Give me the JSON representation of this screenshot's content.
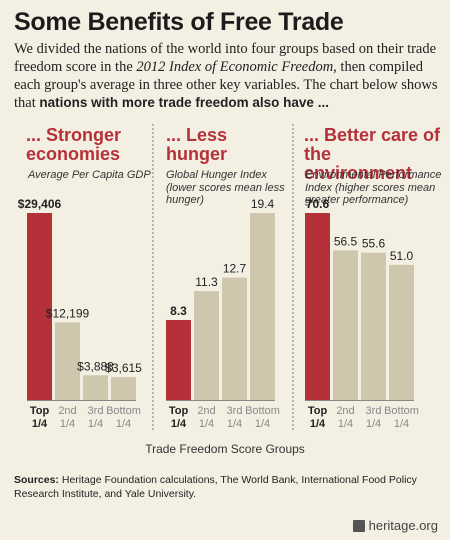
{
  "title": "Some Benefits of Free Trade",
  "intro": {
    "part1": "We divided the nations of the world into four groups based on their trade freedom score in the ",
    "italic": "2012 Index of Economic Freedom",
    "part2": ", then compiled each group's average in three other key variables. The chart below shows that ",
    "bold": "nations with more trade freedom also have ..."
  },
  "x_axis_title": "Trade Freedom Score Groups",
  "sources": {
    "label": "Sources:",
    "text": " Heritage Foundation calculations, The World Bank, International Food Policy Research Institute, and Yale University."
  },
  "logo": {
    "icon": "bell-icon",
    "text": "heritage.org"
  },
  "colors": {
    "highlight": "#b5313a",
    "bar": "#cfc7ad",
    "background": "#f3efe3"
  },
  "chart_data": [
    {
      "type": "bar",
      "title": "... Stronger economies",
      "subtitle": "Average Per Capita GDP",
      "categories": [
        "Top 1/4",
        "2nd 1/4",
        "3rd 1/4",
        "Bottom 1/4"
      ],
      "values": [
        29406,
        12199,
        3888,
        3615
      ],
      "value_labels": [
        "$29,406",
        "$12,199",
        "$3,888",
        "$3,615"
      ],
      "ylim": [
        0,
        29406
      ]
    },
    {
      "type": "bar",
      "title": "... Less hunger",
      "subtitle": "Global Hunger Index (lower scores mean less hunger)",
      "categories": [
        "Top 1/4",
        "2nd 1/4",
        "3rd 1/4",
        "Bottom 1/4"
      ],
      "values": [
        8.3,
        11.3,
        12.7,
        19.4
      ],
      "value_labels": [
        "8.3",
        "11.3",
        "12.7",
        "19.4"
      ],
      "ylim": [
        0,
        19.4
      ]
    },
    {
      "type": "bar",
      "title": "... Better care of the environment",
      "subtitle": "Environmental Performance Index (higher scores mean greater performance)",
      "categories": [
        "Top 1/4",
        "2nd 1/4",
        "3rd 1/4",
        "Bottom 1/4"
      ],
      "values": [
        70.6,
        56.5,
        55.6,
        51.0
      ],
      "value_labels": [
        "70.6",
        "56.5",
        "55.6",
        "51.0"
      ],
      "ylim": [
        0,
        70.6
      ]
    }
  ]
}
